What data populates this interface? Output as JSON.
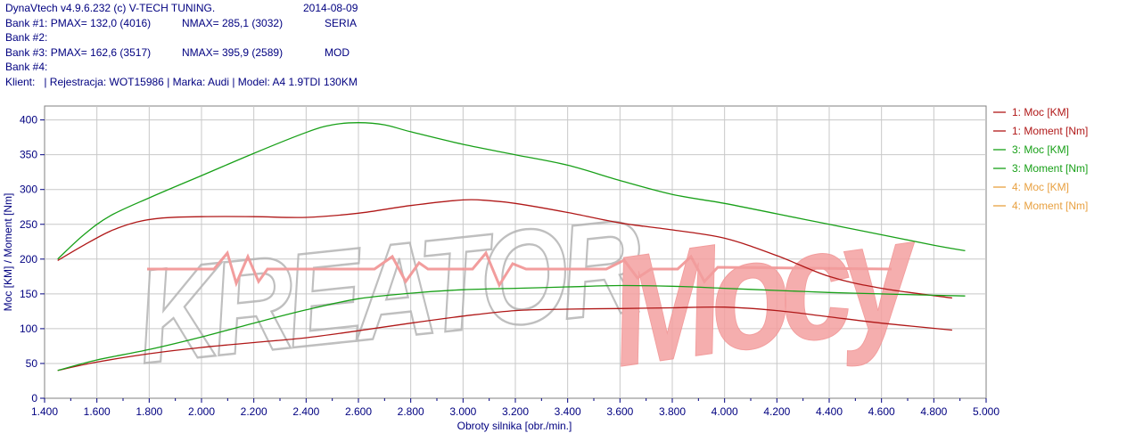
{
  "header": {
    "app": "DynaVtech v4.9.6.232 (c) V-TECH TUNING.",
    "date": "2014-08-09",
    "banks": [
      {
        "label": "Bank #1:",
        "pmax": "PMAX= 132,0 (4016)",
        "nmax": "NMAX= 285,1 (3032)",
        "note": "SERIA"
      },
      {
        "label": "Bank #2:",
        "pmax": "",
        "nmax": "",
        "note": ""
      },
      {
        "label": "Bank #3:",
        "pmax": "PMAX= 162,6 (3517)",
        "nmax": "NMAX= 395,9 (2589)",
        "note": "MOD"
      },
      {
        "label": "Bank #4:",
        "pmax": "",
        "nmax": "",
        "note": ""
      }
    ],
    "client": "Klient:   | Rejestracja: WOT15986 | Marka: Audi | Model: A4 1.9TDI 130KM"
  },
  "watermark": "KREATORMocy",
  "colors": {
    "bank1": "#b01818",
    "bank3": "#18a018",
    "bank4": "#e8a040",
    "axis_text": "#000080",
    "grid": "#c8c8c8",
    "watermark_gray": "#b4b4b4",
    "watermark_red": "#f08c8c"
  },
  "chart_data": {
    "type": "line",
    "xlabel": "Obroty silnika [obr./min.]",
    "ylabel": "Moc [KM] / Moment [Nm]",
    "xlim": [
      1400,
      5000
    ],
    "ylim": [
      0,
      420
    ],
    "x_ticks": [
      1400,
      1600,
      1800,
      2000,
      2200,
      2400,
      2600,
      2800,
      3000,
      3200,
      3400,
      3600,
      3800,
      4000,
      4200,
      4400,
      4600,
      4800,
      5000
    ],
    "x_tick_labels": [
      "1.400",
      "1.600",
      "1.800",
      "2.000",
      "2.200",
      "2.400",
      "2.600",
      "2.800",
      "3.000",
      "3.200",
      "3.400",
      "3.600",
      "3.800",
      "4.000",
      "4.200",
      "4.400",
      "4.600",
      "4.800",
      "5.000"
    ],
    "y_ticks": [
      0,
      50,
      100,
      150,
      200,
      250,
      300,
      350,
      400
    ],
    "y_tick_labels": [
      "0",
      "50",
      "100",
      "150",
      "200",
      "250",
      "300",
      "350",
      "400"
    ],
    "grid": true,
    "legend_position": "right",
    "series": [
      {
        "name": "1: Moc [KM]",
        "color": "#b01818",
        "visible": true,
        "x": [
          1450,
          1600,
          1800,
          2000,
          2200,
          2400,
          2600,
          2800,
          3000,
          3200,
          3400,
          3600,
          3800,
          4000,
          4200,
          4400,
          4600,
          4870
        ],
        "y": [
          40,
          52,
          64,
          73,
          80,
          87,
          97,
          108,
          118,
          126,
          128,
          129,
          130,
          131,
          126,
          117,
          108,
          98
        ]
      },
      {
        "name": "1: Moment [Nm]",
        "color": "#b01818",
        "visible": true,
        "x": [
          1450,
          1550,
          1650,
          1750,
          1850,
          2000,
          2200,
          2400,
          2600,
          2800,
          3000,
          3100,
          3200,
          3400,
          3600,
          3800,
          4000,
          4200,
          4400,
          4600,
          4870
        ],
        "y": [
          198,
          220,
          240,
          253,
          259,
          261,
          261,
          260,
          266,
          277,
          285,
          284,
          280,
          267,
          252,
          242,
          230,
          205,
          175,
          158,
          144
        ]
      },
      {
        "name": "3: Moc [KM]",
        "color": "#18a018",
        "visible": true,
        "x": [
          1450,
          1600,
          1800,
          2000,
          2200,
          2400,
          2600,
          2800,
          3000,
          3200,
          3400,
          3600,
          3800,
          4000,
          4200,
          4400,
          4600,
          4800,
          4920
        ],
        "y": [
          40,
          55,
          70,
          88,
          108,
          127,
          143,
          151,
          156,
          158,
          160,
          162,
          161,
          158,
          155,
          152,
          150,
          148,
          147
        ]
      },
      {
        "name": "3: Moment [Nm]",
        "color": "#18a018",
        "visible": true,
        "x": [
          1450,
          1550,
          1650,
          1800,
          2000,
          2200,
          2400,
          2500,
          2600,
          2700,
          2800,
          3000,
          3200,
          3400,
          3600,
          3800,
          4000,
          4200,
          4400,
          4600,
          4800,
          4920
        ],
        "y": [
          200,
          235,
          262,
          288,
          320,
          352,
          382,
          393,
          396,
          393,
          383,
          365,
          350,
          335,
          313,
          293,
          280,
          265,
          250,
          235,
          220,
          212
        ]
      },
      {
        "name": "4: Moc [KM]",
        "color": "#e8a040",
        "visible": false,
        "x": [],
        "y": []
      },
      {
        "name": "4: Moment [Nm]",
        "color": "#e8a040",
        "visible": false,
        "x": [],
        "y": []
      }
    ]
  }
}
